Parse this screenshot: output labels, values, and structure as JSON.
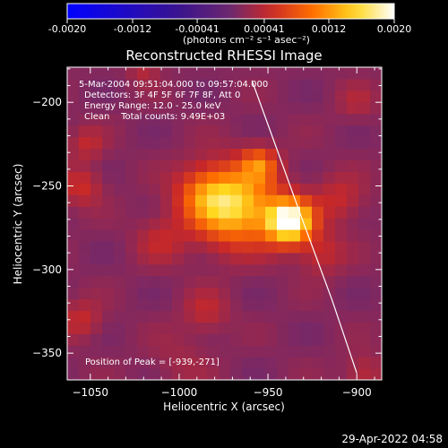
{
  "colorbar": {
    "tick_labels": [
      "-0.0020",
      "-0.0012",
      "-0.00041",
      "0.00041",
      "0.0012",
      "0.0020"
    ],
    "units_label": "(photons cm⁻² s⁻¹ asec⁻²)",
    "range": [
      -0.002,
      0.002
    ]
  },
  "footer": {
    "date_time": "29-Apr-2022 04:58"
  },
  "chart_data": {
    "type": "heatmap",
    "title": "Reconstructed RHESSI Image",
    "xlabel": "Heliocentric X (arcsec)",
    "ylabel": "Heliocentric Y (arcsec)",
    "xlim": [
      -1063,
      -886
    ],
    "ylim": [
      -366,
      -179
    ],
    "x_ticks": [
      -1050,
      -1000,
      -950,
      -900
    ],
    "y_ticks": [
      -350,
      -300,
      -250,
      -200
    ],
    "x_tick_labels": [
      "−1050",
      "−1000",
      "−950",
      "−900"
    ],
    "y_tick_labels": [
      "−350",
      "−300",
      "−250",
      "−200"
    ],
    "annotations": [
      "5-Mar-2004 09:51:04.000 to 09:57:04.000",
      "Detectors: 3F 4F 5F 6F 7F 8F, Att 0",
      "Energy Range: 12.0 - 25.0 keV",
      "Clean    Total counts: 9.49E+03"
    ],
    "peak_label": "Position of Peak = [-939,-271]",
    "peak_position": [
      -939,
      -271
    ],
    "limb_line": {
      "points": [
        [
          -959,
          -187
        ],
        [
          -945,
          -228
        ],
        [
          -930,
          -272
        ],
        [
          -914,
          -318
        ],
        [
          -900,
          -362
        ]
      ]
    },
    "sources": [
      {
        "x": -938,
        "y": -271,
        "amplitude": 0.00195,
        "sigma": 9
      },
      {
        "x": -968,
        "y": -262,
        "amplitude": 0.00135,
        "sigma": 16
      },
      {
        "x": -955,
        "y": -237,
        "amplitude": 0.00075,
        "sigma": 7
      },
      {
        "x": -985,
        "y": -255,
        "amplitude": 0.0006,
        "sigma": 12
      },
      {
        "x": -910,
        "y": -258,
        "amplitude": 0.00035,
        "sigma": 10
      },
      {
        "x": -920,
        "y": -290,
        "amplitude": 0.00035,
        "sigma": 9
      },
      {
        "x": -1010,
        "y": -282,
        "amplitude": 0.0003,
        "sigma": 10
      },
      {
        "x": -1055,
        "y": -250,
        "amplitude": 0.0004,
        "sigma": 8
      },
      {
        "x": -1052,
        "y": -225,
        "amplitude": 0.0003,
        "sigma": 7
      },
      {
        "x": -1055,
        "y": -330,
        "amplitude": 0.00035,
        "sigma": 8
      },
      {
        "x": -985,
        "y": -325,
        "amplitude": 0.0003,
        "sigma": 9
      },
      {
        "x": -1020,
        "y": -180,
        "amplitude": 0.00025,
        "sigma": 6
      },
      {
        "x": -896,
        "y": -362,
        "amplitude": 0.0003,
        "sigma": 8
      },
      {
        "x": -1000,
        "y": -355,
        "amplitude": 0.00015,
        "sigma": 12
      },
      {
        "x": -900,
        "y": -200,
        "amplitude": 0.0002,
        "sigma": 8
      }
    ],
    "background_level": 0.00012,
    "grid": false
  }
}
